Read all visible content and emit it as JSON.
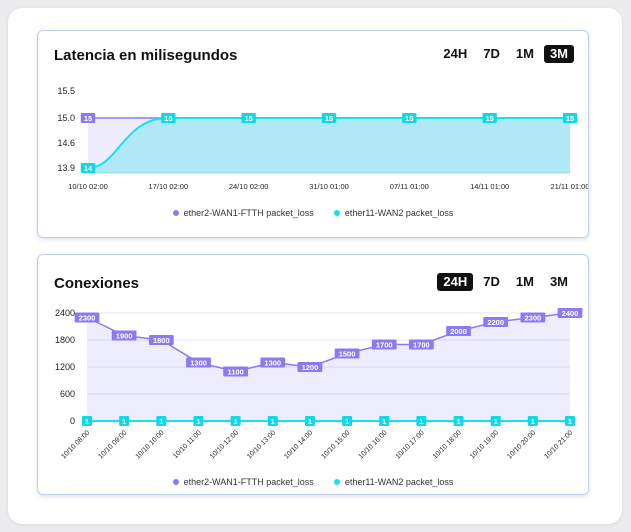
{
  "colors": {
    "series1": "#8a7cf0",
    "series2": "#14e2ee"
  },
  "latency": {
    "title": "Latencia en milisegundos",
    "ranges": [
      "24H",
      "7D",
      "1M",
      "3M"
    ],
    "active_range": "3M",
    "chart_data": {
      "type": "area",
      "x": [
        "10/10 02:00",
        "17/10 02:00",
        "24/10 02:00",
        "31/10 01:00",
        "07/11 01:00",
        "14/11 01:00",
        "21/11 01:00"
      ],
      "yticks": [
        "13.9",
        "14.6",
        "15.0",
        "15.5"
      ],
      "series": [
        {
          "name": "ether2-WAN1-FTTH packet_loss",
          "values": [
            15,
            15,
            15,
            15,
            15,
            15,
            15
          ],
          "labels": [
            "15"
          ]
        },
        {
          "name": "ether11-WAN2 packet_loss",
          "values": [
            14,
            15,
            15,
            15,
            15,
            15,
            15
          ],
          "labels": [
            "14",
            "15",
            "15",
            "15",
            "15",
            "15",
            "15"
          ]
        }
      ],
      "legend": "bottom"
    }
  },
  "connections": {
    "title": "Conexiones",
    "ranges": [
      "24H",
      "7D",
      "1M",
      "3M"
    ],
    "active_range": "24H",
    "chart_data": {
      "type": "area",
      "x": [
        "10/10 08:00",
        "10/10 09:00",
        "10/10 10:00",
        "10/10 11:00",
        "10/10 12:00",
        "10/10 13:00",
        "10/10 14:00",
        "10/10 15:00",
        "10/10 16:00",
        "10/10 17:00",
        "10/10 18:00",
        "10/10 19:00",
        "10/10 20:00",
        "10/10 21:00"
      ],
      "yticks": [
        "0",
        "600",
        "1200",
        "1800",
        "2400"
      ],
      "ylim": [
        0,
        2400
      ],
      "series": [
        {
          "name": "ether2-WAN1-FTTH packet_loss",
          "values": [
            2300,
            1900,
            1800,
            1300,
            1100,
            1300,
            1200,
            1500,
            1700,
            1700,
            2000,
            2200,
            2300,
            2400
          ]
        },
        {
          "name": "ether11-WAN2 packet_loss",
          "values": [
            1,
            1,
            1,
            1,
            1,
            1,
            1,
            1,
            1,
            1,
            1,
            1,
            1,
            1
          ]
        }
      ],
      "legend": "bottom"
    }
  }
}
